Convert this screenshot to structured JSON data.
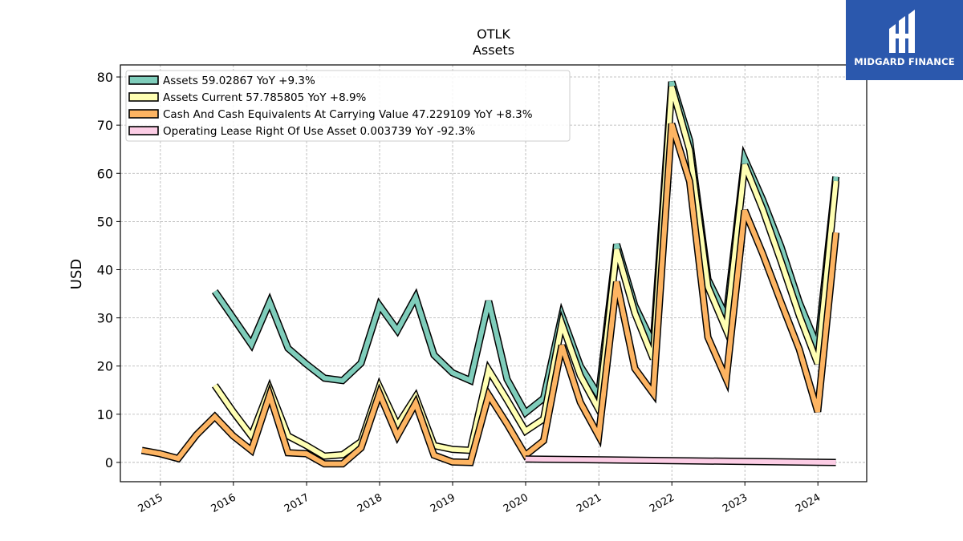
{
  "brand": {
    "name": "MIDGARD FINANCE",
    "logo_icon": "midgard-monogram-icon",
    "color": "#2b58ad"
  },
  "chart_data": {
    "type": "line",
    "title": "OTLK",
    "subtitle": "Assets",
    "ylabel": "USD",
    "xlabel": "",
    "ylim": [
      -4,
      82.5
    ],
    "xlim": [
      "2014-06-15",
      "2024-09-01"
    ],
    "yticks": [
      0,
      10,
      20,
      30,
      40,
      50,
      60,
      70,
      80
    ],
    "xticks": [
      "2015",
      "2016",
      "2017",
      "2018",
      "2019",
      "2020",
      "2021",
      "2022",
      "2023",
      "2024"
    ],
    "grid": true,
    "legend_position": "top-left",
    "series": [
      {
        "name": "Assets",
        "legend": "Assets  59.02867 YoY +9.3%",
        "color": "#7fcdbb",
        "points": [
          [
            "2015-09-30",
            35.5
          ],
          [
            "2015-12-31",
            30.0
          ],
          [
            "2016-03-31",
            24.5
          ],
          [
            "2016-06-30",
            33.3
          ],
          [
            "2016-09-30",
            23.7
          ],
          [
            "2016-12-31",
            20.4
          ],
          [
            "2017-03-31",
            17.5
          ],
          [
            "2017-06-30",
            17.0
          ],
          [
            "2017-09-30",
            20.6
          ],
          [
            "2017-12-31",
            32.6
          ],
          [
            "2018-03-31",
            27.4
          ],
          [
            "2018-06-30",
            34.3
          ],
          [
            "2018-09-30",
            22.3
          ],
          [
            "2018-12-31",
            18.6
          ],
          [
            "2019-03-31",
            17.0
          ],
          [
            "2019-06-30",
            33.5
          ],
          [
            "2019-09-30",
            17.3
          ],
          [
            "2019-12-31",
            10.3
          ],
          [
            "2020-03-31",
            13.3
          ],
          [
            "2020-06-30",
            30.5
          ],
          [
            "2020-09-30",
            20.0
          ],
          [
            "2020-12-31",
            13.9
          ],
          [
            "2021-03-31",
            45.3
          ],
          [
            "2021-06-30",
            32.5
          ],
          [
            "2021-09-30",
            24.6
          ],
          [
            "2021-12-31",
            79.0
          ],
          [
            "2022-03-31",
            66.8
          ],
          [
            "2022-06-30",
            38.0
          ],
          [
            "2022-09-30",
            30.2
          ],
          [
            "2022-12-31",
            63.0
          ],
          [
            "2023-03-31",
            54.5
          ],
          [
            "2023-06-30",
            44.8
          ],
          [
            "2023-09-30",
            33.2
          ],
          [
            "2023-12-31",
            24.0
          ],
          [
            "2024-03-31",
            59.3
          ]
        ]
      },
      {
        "name": "Assets Current",
        "legend": "Assets Current  57.785805 YoY +8.9%",
        "color": "#ffffb3",
        "points": [
          [
            "2015-09-30",
            16.0
          ],
          [
            "2015-12-31",
            10.5
          ],
          [
            "2016-03-31",
            5.5
          ],
          [
            "2016-06-30",
            15.3
          ],
          [
            "2016-09-30",
            5.5
          ],
          [
            "2016-12-31",
            3.5
          ],
          [
            "2017-03-31",
            1.3
          ],
          [
            "2017-06-30",
            1.6
          ],
          [
            "2017-09-30",
            4.3
          ],
          [
            "2017-12-31",
            15.7
          ],
          [
            "2018-03-31",
            7.7
          ],
          [
            "2018-06-30",
            13.6
          ],
          [
            "2018-09-30",
            3.5
          ],
          [
            "2018-12-31",
            2.7
          ],
          [
            "2019-03-31",
            2.5
          ],
          [
            "2019-06-30",
            19.2
          ],
          [
            "2019-09-30",
            13.0
          ],
          [
            "2019-12-31",
            6.5
          ],
          [
            "2020-03-31",
            9.0
          ],
          [
            "2020-06-30",
            28.8
          ],
          [
            "2020-09-30",
            18.0
          ],
          [
            "2020-12-31",
            11.0
          ],
          [
            "2021-03-31",
            44.2
          ],
          [
            "2021-06-30",
            31.0
          ],
          [
            "2021-09-30",
            21.5
          ],
          [
            "2021-12-31",
            78.0
          ],
          [
            "2022-03-31",
            64.8
          ],
          [
            "2022-06-30",
            36.5
          ],
          [
            "2022-09-30",
            27.5
          ],
          [
            "2022-12-31",
            61.8
          ],
          [
            "2023-03-31",
            52.5
          ],
          [
            "2023-06-30",
            41.8
          ],
          [
            "2023-09-30",
            30.5
          ],
          [
            "2023-12-31",
            20.5
          ],
          [
            "2024-03-31",
            58.4
          ]
        ]
      },
      {
        "name": "Cash And Cash Equivalents At Carrying Value",
        "legend": "Cash And Cash Equivalents At Carrying Value  47.229109 YoY +8.3%",
        "color": "#fdb462",
        "points": [
          [
            "2014-09-30",
            2.5
          ],
          [
            "2014-12-31",
            1.8
          ],
          [
            "2015-03-31",
            0.8
          ],
          [
            "2015-06-30",
            5.7
          ],
          [
            "2015-09-30",
            9.5
          ],
          [
            "2015-12-31",
            5.5
          ],
          [
            "2016-03-31",
            2.5
          ],
          [
            "2016-06-30",
            14.0
          ],
          [
            "2016-09-30",
            2.0
          ],
          [
            "2016-12-31",
            1.8
          ],
          [
            "2017-03-31",
            -0.3
          ],
          [
            "2017-06-30",
            -0.3
          ],
          [
            "2017-09-30",
            3.0
          ],
          [
            "2017-12-31",
            14.3
          ],
          [
            "2018-03-31",
            5.5
          ],
          [
            "2018-06-30",
            12.3
          ],
          [
            "2018-09-30",
            1.5
          ],
          [
            "2018-12-31",
            0.1
          ],
          [
            "2019-03-31",
            0.0
          ],
          [
            "2019-06-30",
            14.0
          ],
          [
            "2019-09-30",
            8.0
          ],
          [
            "2019-12-31",
            1.5
          ],
          [
            "2020-03-31",
            4.5
          ],
          [
            "2020-06-30",
            24.3
          ],
          [
            "2020-09-30",
            12.5
          ],
          [
            "2020-12-31",
            5.5
          ],
          [
            "2021-03-31",
            37.5
          ],
          [
            "2021-06-30",
            19.5
          ],
          [
            "2021-09-30",
            14.3
          ],
          [
            "2021-12-31",
            70.3
          ],
          [
            "2022-03-31",
            58.3
          ],
          [
            "2022-06-30",
            26.0
          ],
          [
            "2022-09-30",
            17.3
          ],
          [
            "2022-12-31",
            52.3
          ],
          [
            "2023-03-31",
            43.3
          ],
          [
            "2023-06-30",
            33.3
          ],
          [
            "2023-09-30",
            23.5
          ],
          [
            "2023-12-31",
            10.5
          ],
          [
            "2024-03-31",
            47.7
          ]
        ]
      },
      {
        "name": "Operating Lease Right Of Use Asset",
        "legend": "Operating Lease Right Of Use Asset  0.003739 YoY -92.3%",
        "color": "#fccde5",
        "points": [
          [
            "2019-12-31",
            0.7
          ],
          [
            "2024-03-31",
            0.0
          ]
        ]
      }
    ]
  }
}
